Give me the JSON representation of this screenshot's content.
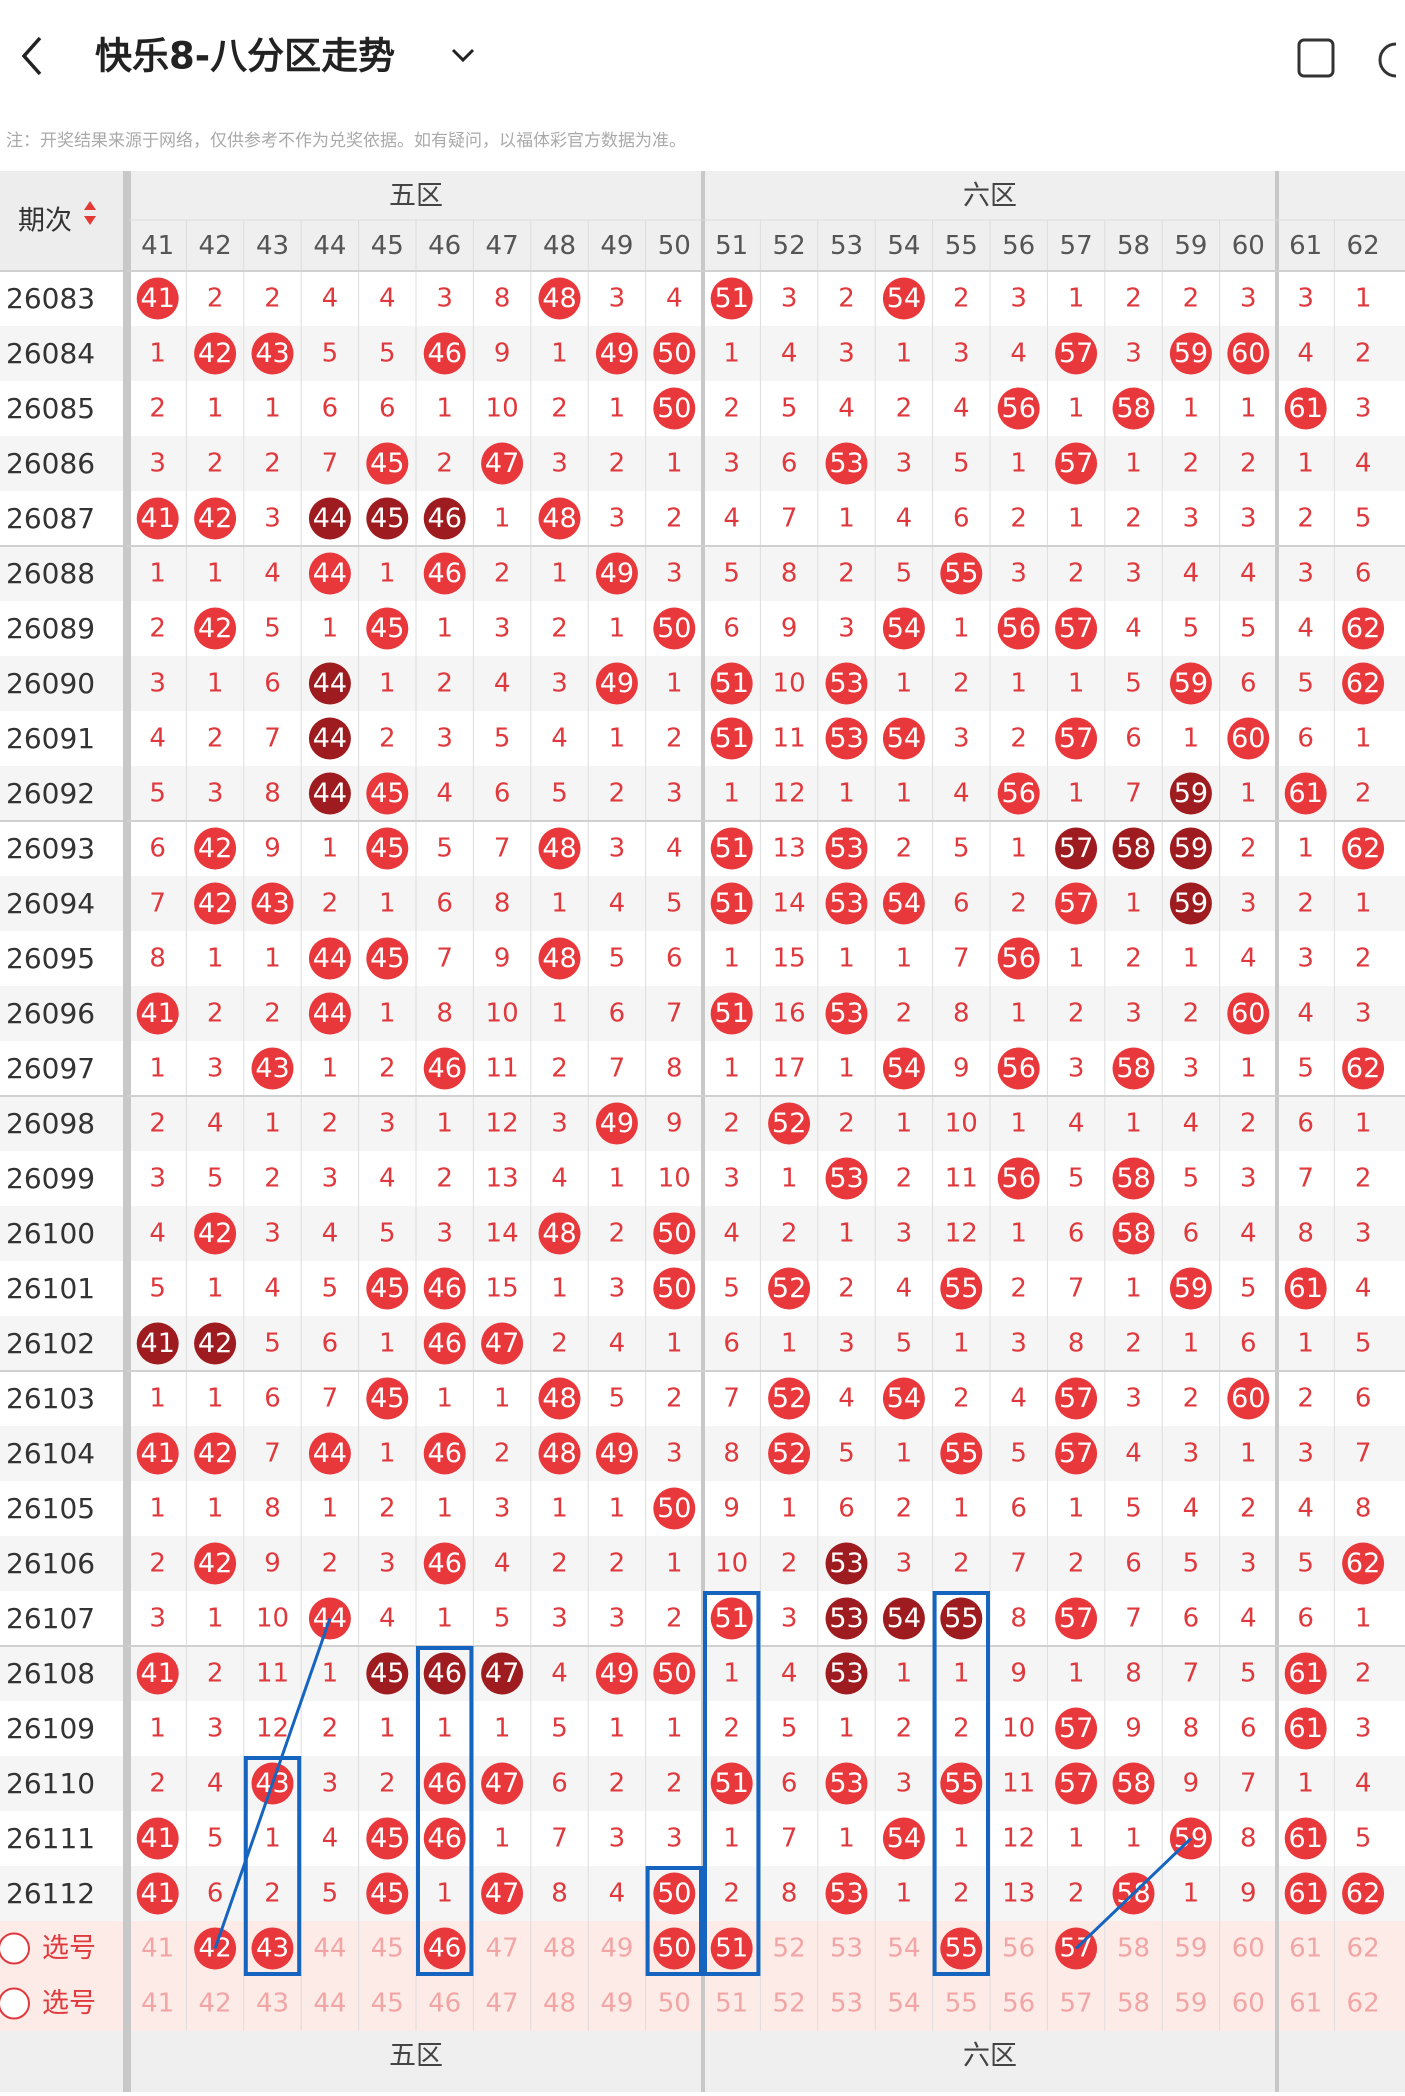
{
  "header": {
    "title": "快乐8-八分区走势",
    "notice": "注：开奖结果来源于网络，仅供参考不作为兑奖依据。如有疑问，以福体彩官方数据为准。"
  },
  "table": {
    "period_header": "期次",
    "zones": [
      {
        "name": "五区",
        "columns": [
          41,
          42,
          43,
          44,
          45,
          46,
          47,
          48,
          49,
          50
        ]
      },
      {
        "name": "六区",
        "columns": [
          51,
          52,
          53,
          54,
          55,
          56,
          57,
          58,
          59,
          60
        ]
      },
      {
        "columns": [
          61,
          62
        ]
      }
    ],
    "rows": [
      {
        "period": "26083",
        "cells": [
          41,
          2,
          2,
          4,
          4,
          3,
          8,
          48,
          3,
          4,
          51,
          3,
          2,
          54,
          2,
          3,
          1,
          2,
          2,
          3,
          3,
          1
        ],
        "dark": []
      },
      {
        "period": "26084",
        "cells": [
          1,
          42,
          43,
          5,
          5,
          46,
          9,
          1,
          49,
          50,
          1,
          4,
          3,
          1,
          3,
          4,
          57,
          3,
          59,
          60,
          4,
          2
        ],
        "dark": []
      },
      {
        "period": "26085",
        "cells": [
          2,
          1,
          1,
          6,
          6,
          1,
          10,
          2,
          1,
          50,
          2,
          5,
          4,
          2,
          4,
          56,
          1,
          58,
          1,
          1,
          61,
          3
        ],
        "dark": []
      },
      {
        "period": "26086",
        "cells": [
          3,
          2,
          2,
          7,
          45,
          2,
          47,
          3,
          2,
          1,
          3,
          6,
          53,
          3,
          5,
          1,
          57,
          1,
          2,
          2,
          1,
          4
        ],
        "dark": []
      },
      {
        "period": "26087",
        "cells": [
          41,
          42,
          3,
          44,
          45,
          46,
          1,
          48,
          3,
          2,
          4,
          7,
          1,
          4,
          6,
          2,
          1,
          2,
          3,
          3,
          2,
          5
        ],
        "dark": [
          44,
          45,
          46
        ]
      },
      {
        "period": "26088",
        "cells": [
          1,
          1,
          4,
          44,
          1,
          46,
          2,
          1,
          49,
          3,
          5,
          8,
          2,
          5,
          55,
          3,
          2,
          3,
          4,
          4,
          3,
          6
        ],
        "dark": []
      },
      {
        "period": "26089",
        "cells": [
          2,
          42,
          5,
          1,
          45,
          1,
          3,
          2,
          1,
          50,
          6,
          9,
          3,
          54,
          1,
          56,
          57,
          4,
          5,
          5,
          4,
          62
        ],
        "dark": []
      },
      {
        "period": "26090",
        "cells": [
          3,
          1,
          6,
          44,
          1,
          2,
          4,
          3,
          49,
          1,
          51,
          10,
          53,
          1,
          2,
          1,
          1,
          5,
          59,
          6,
          5,
          62
        ],
        "dark": [
          44
        ]
      },
      {
        "period": "26091",
        "cells": [
          4,
          2,
          7,
          44,
          2,
          3,
          5,
          4,
          1,
          2,
          51,
          11,
          53,
          54,
          3,
          2,
          57,
          6,
          1,
          60,
          6,
          1
        ],
        "dark": [
          44
        ]
      },
      {
        "period": "26092",
        "cells": [
          5,
          3,
          8,
          44,
          45,
          4,
          6,
          5,
          2,
          3,
          1,
          12,
          1,
          1,
          4,
          56,
          1,
          7,
          59,
          1,
          61,
          2
        ],
        "dark": [
          44,
          59
        ]
      },
      {
        "period": "26093",
        "cells": [
          6,
          42,
          9,
          1,
          45,
          5,
          7,
          48,
          3,
          4,
          51,
          13,
          53,
          2,
          5,
          1,
          57,
          58,
          59,
          2,
          1,
          62
        ],
        "dark": [
          57,
          58,
          59
        ]
      },
      {
        "period": "26094",
        "cells": [
          7,
          42,
          43,
          2,
          1,
          6,
          8,
          1,
          4,
          5,
          51,
          14,
          53,
          54,
          6,
          2,
          57,
          1,
          59,
          3,
          2,
          1
        ],
        "dark": [
          59
        ]
      },
      {
        "period": "26095",
        "cells": [
          8,
          1,
          1,
          44,
          45,
          7,
          9,
          48,
          5,
          6,
          1,
          15,
          1,
          1,
          7,
          56,
          1,
          2,
          1,
          4,
          3,
          2
        ],
        "dark": []
      },
      {
        "period": "26096",
        "cells": [
          41,
          2,
          2,
          44,
          1,
          8,
          10,
          1,
          6,
          7,
          51,
          16,
          53,
          2,
          8,
          1,
          2,
          3,
          2,
          60,
          4,
          3
        ],
        "dark": []
      },
      {
        "period": "26097",
        "cells": [
          1,
          3,
          43,
          1,
          2,
          46,
          11,
          2,
          7,
          8,
          1,
          17,
          1,
          54,
          9,
          56,
          3,
          58,
          3,
          1,
          5,
          62
        ],
        "dark": []
      },
      {
        "period": "26098",
        "cells": [
          2,
          4,
          1,
          2,
          3,
          1,
          12,
          3,
          49,
          9,
          2,
          52,
          2,
          1,
          10,
          1,
          4,
          1,
          4,
          2,
          6,
          1
        ],
        "dark": []
      },
      {
        "period": "26099",
        "cells": [
          3,
          5,
          2,
          3,
          4,
          2,
          13,
          4,
          1,
          10,
          3,
          1,
          53,
          2,
          11,
          56,
          5,
          58,
          5,
          3,
          7,
          2
        ],
        "dark": []
      },
      {
        "period": "26100",
        "cells": [
          4,
          42,
          3,
          4,
          5,
          3,
          14,
          48,
          2,
          50,
          4,
          2,
          1,
          3,
          12,
          1,
          6,
          58,
          6,
          4,
          8,
          3
        ],
        "dark": []
      },
      {
        "period": "26101",
        "cells": [
          5,
          1,
          4,
          5,
          45,
          46,
          15,
          1,
          3,
          50,
          5,
          52,
          2,
          4,
          55,
          2,
          7,
          1,
          59,
          5,
          61,
          4
        ],
        "dark": []
      },
      {
        "period": "26102",
        "cells": [
          41,
          42,
          5,
          6,
          1,
          46,
          47,
          2,
          4,
          1,
          6,
          1,
          3,
          5,
          1,
          3,
          8,
          2,
          1,
          6,
          1,
          5
        ],
        "dark": [
          41,
          42
        ]
      },
      {
        "period": "26103",
        "cells": [
          1,
          1,
          6,
          7,
          45,
          1,
          1,
          48,
          5,
          2,
          7,
          52,
          4,
          54,
          2,
          4,
          57,
          3,
          2,
          60,
          2,
          6
        ],
        "dark": []
      },
      {
        "period": "26104",
        "cells": [
          41,
          42,
          7,
          44,
          1,
          46,
          2,
          48,
          49,
          3,
          8,
          52,
          5,
          1,
          55,
          5,
          57,
          4,
          3,
          1,
          3,
          7
        ],
        "dark": []
      },
      {
        "period": "26105",
        "cells": [
          1,
          1,
          8,
          1,
          2,
          1,
          3,
          1,
          1,
          50,
          9,
          1,
          6,
          2,
          1,
          6,
          1,
          5,
          4,
          2,
          4,
          8
        ],
        "dark": []
      },
      {
        "period": "26106",
        "cells": [
          2,
          42,
          9,
          2,
          3,
          46,
          4,
          2,
          2,
          1,
          10,
          2,
          53,
          3,
          2,
          7,
          2,
          6,
          5,
          3,
          5,
          62
        ],
        "dark": [
          53
        ]
      },
      {
        "period": "26107",
        "cells": [
          3,
          1,
          10,
          44,
          4,
          1,
          5,
          3,
          3,
          2,
          51,
          3,
          53,
          54,
          55,
          8,
          57,
          7,
          6,
          4,
          6,
          1
        ],
        "dark": [
          53,
          54,
          55
        ]
      },
      {
        "period": "26108",
        "cells": [
          41,
          2,
          11,
          1,
          45,
          46,
          47,
          4,
          49,
          50,
          1,
          4,
          53,
          1,
          1,
          9,
          1,
          8,
          7,
          5,
          61,
          2
        ],
        "dark": [
          45,
          46,
          47,
          53
        ]
      },
      {
        "period": "26109",
        "cells": [
          1,
          3,
          12,
          2,
          1,
          1,
          1,
          5,
          1,
          1,
          2,
          5,
          1,
          2,
          2,
          10,
          57,
          9,
          8,
          6,
          61,
          3
        ],
        "dark": []
      },
      {
        "period": "26110",
        "cells": [
          2,
          4,
          43,
          3,
          2,
          46,
          47,
          6,
          2,
          2,
          51,
          6,
          53,
          3,
          55,
          11,
          57,
          58,
          9,
          7,
          1,
          4
        ],
        "dark": []
      },
      {
        "period": "26111",
        "cells": [
          41,
          5,
          1,
          4,
          45,
          46,
          1,
          7,
          3,
          3,
          1,
          7,
          1,
          54,
          1,
          12,
          1,
          1,
          59,
          8,
          61,
          5
        ],
        "dark": []
      },
      {
        "period": "26112",
        "cells": [
          41,
          6,
          2,
          5,
          45,
          1,
          47,
          8,
          4,
          50,
          2,
          8,
          53,
          1,
          2,
          13,
          2,
          58,
          1,
          9,
          61,
          62
        ],
        "dark": []
      }
    ],
    "select_rows": [
      {
        "label": "选号",
        "picked": [
          42,
          43,
          46,
          50,
          51,
          55,
          57
        ]
      },
      {
        "label": "选号",
        "picked": []
      }
    ]
  }
}
